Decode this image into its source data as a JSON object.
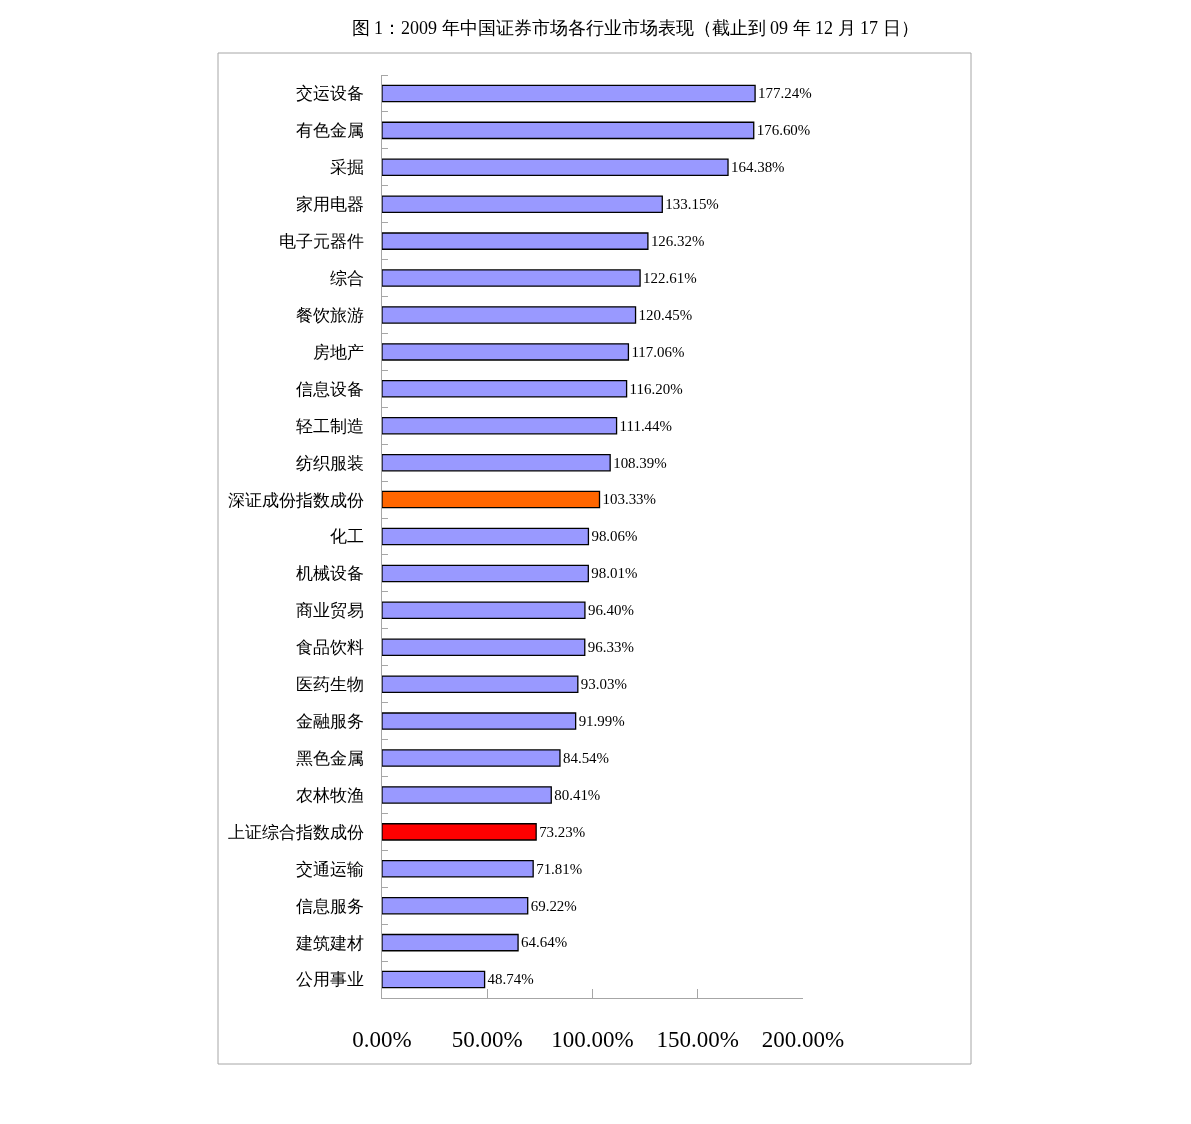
{
  "chart_data": {
    "type": "bar",
    "orientation": "horizontal",
    "title": "图 1：2009 年中国证券市场各行业市场表现（截止到 09 年 12 月 17 日）",
    "categories": [
      "交运设备",
      "有色金属",
      "采掘",
      "家用电器",
      "电子元器件",
      "综合",
      "餐饮旅游",
      "房地产",
      "信息设备",
      "轻工制造",
      "纺织服装",
      "深证成份指数成份",
      "化工",
      "机械设备",
      "商业贸易",
      "食品饮料",
      "医药生物",
      "金融服务",
      "黑色金属",
      "农林牧渔",
      "上证综合指数成份",
      "交通运输",
      "信息服务",
      "建筑建材",
      "公用事业"
    ],
    "values": [
      177.24,
      176.6,
      164.38,
      133.15,
      126.32,
      122.61,
      120.45,
      117.06,
      116.2,
      111.44,
      108.39,
      103.33,
      98.06,
      98.01,
      96.4,
      96.33,
      93.03,
      91.99,
      84.54,
      80.41,
      73.23,
      71.81,
      69.22,
      64.64,
      48.74
    ],
    "value_labels": [
      "177.24%",
      "176.60%",
      "164.38%",
      "133.15%",
      "126.32%",
      "122.61%",
      "120.45%",
      "117.06%",
      "116.20%",
      "111.44%",
      "108.39%",
      "103.33%",
      "98.06%",
      "98.01%",
      "96.40%",
      "96.33%",
      "93.03%",
      "91.99%",
      "84.54%",
      "80.41%",
      "73.23%",
      "71.81%",
      "69.22%",
      "64.64%",
      "48.74%"
    ],
    "colors": [
      "#9999ff",
      "#9999ff",
      "#9999ff",
      "#9999ff",
      "#9999ff",
      "#9999ff",
      "#9999ff",
      "#9999ff",
      "#9999ff",
      "#9999ff",
      "#9999ff",
      "#ff6600",
      "#9999ff",
      "#9999ff",
      "#9999ff",
      "#9999ff",
      "#9999ff",
      "#9999ff",
      "#9999ff",
      "#9999ff",
      "#ff0000",
      "#9999ff",
      "#9999ff",
      "#9999ff",
      "#9999ff"
    ],
    "xlim": [
      0,
      200
    ],
    "xticks": [
      {
        "value": 0,
        "label": "0.00%"
      },
      {
        "value": 50,
        "label": "50.00%"
      },
      {
        "value": 100,
        "label": "100.00%"
      },
      {
        "value": 150,
        "label": "150.00%"
      },
      {
        "value": 200,
        "label": "200.00%"
      }
    ]
  }
}
